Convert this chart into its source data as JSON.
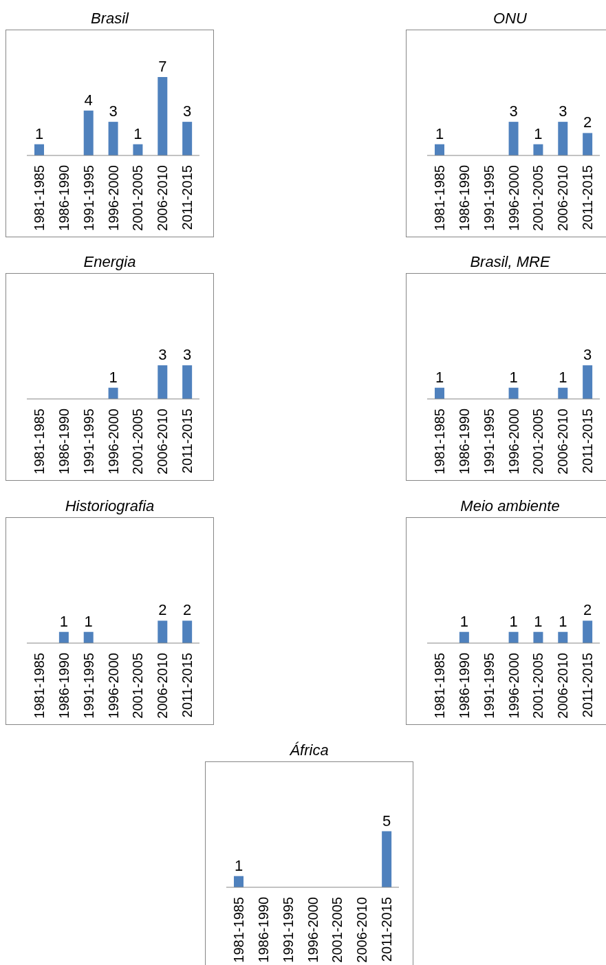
{
  "chart_data": [
    {
      "type": "bar",
      "title": "Brasil",
      "categories": [
        "1981-1985",
        "1986-1990",
        "1991-1995",
        "1996-2000",
        "2001-2005",
        "2006-2010",
        "2011-2015"
      ],
      "values": [
        1,
        0,
        4,
        3,
        1,
        7,
        3
      ],
      "value_labels": [
        "1",
        null,
        "4",
        "3",
        "1",
        "7",
        "3"
      ],
      "color": "#4f81bd"
    },
    {
      "type": "bar",
      "title": "ONU",
      "categories": [
        "1981-1985",
        "1986-1990",
        "1991-1995",
        "1996-2000",
        "2001-2005",
        "2006-2010",
        "2011-2015"
      ],
      "values": [
        1,
        0,
        0,
        3,
        1,
        3,
        2
      ],
      "value_labels": [
        "1",
        null,
        null,
        "3",
        "1",
        "3",
        "2"
      ],
      "color": "#4f81bd"
    },
    {
      "type": "bar",
      "title": "Energia",
      "categories": [
        "1981-1985",
        "1986-1990",
        "1991-1995",
        "1996-2000",
        "2001-2005",
        "2006-2010",
        "2011-2015"
      ],
      "values": [
        0,
        0,
        0,
        1,
        0,
        3,
        3
      ],
      "value_labels": [
        null,
        null,
        null,
        "1",
        null,
        "3",
        "3"
      ],
      "color": "#4f81bd"
    },
    {
      "type": "bar",
      "title": "Brasil, MRE",
      "categories": [
        "1981-1985",
        "1986-1990",
        "1991-1995",
        "1996-2000",
        "2001-2005",
        "2006-2010",
        "2011-2015"
      ],
      "values": [
        1,
        0,
        0,
        1,
        0,
        1,
        3
      ],
      "value_labels": [
        "1",
        null,
        null,
        "1",
        null,
        "1",
        "3"
      ],
      "color": "#4f81bd"
    },
    {
      "type": "bar",
      "title": "Historiografia",
      "categories": [
        "1981-1985",
        "1986-1990",
        "1991-1995",
        "1996-2000",
        "2001-2005",
        "2006-2010",
        "2011-2015"
      ],
      "values": [
        0,
        1,
        1,
        0,
        0,
        2,
        2
      ],
      "value_labels": [
        null,
        "1",
        "1",
        null,
        null,
        "2",
        "2"
      ],
      "color": "#4f81bd"
    },
    {
      "type": "bar",
      "title": "Meio ambiente",
      "categories": [
        "1981-1985",
        "1986-1990",
        "1991-1995",
        "1996-2000",
        "2001-2005",
        "2006-2010",
        "2011-2015"
      ],
      "values": [
        0,
        1,
        0,
        1,
        1,
        1,
        2
      ],
      "value_labels": [
        null,
        "1",
        null,
        "1",
        "1",
        "1",
        "2"
      ],
      "color": "#4f81bd"
    },
    {
      "type": "bar",
      "title": "África",
      "categories": [
        "1981-1985",
        "1986-1990",
        "1991-1995",
        "1996-2000",
        "2001-2005",
        "2006-2010",
        "2011-2015"
      ],
      "values": [
        1,
        0,
        0,
        0,
        0,
        0,
        5
      ],
      "value_labels": [
        "1",
        null,
        null,
        null,
        null,
        null,
        "5"
      ],
      "color": "#4f81bd"
    }
  ]
}
